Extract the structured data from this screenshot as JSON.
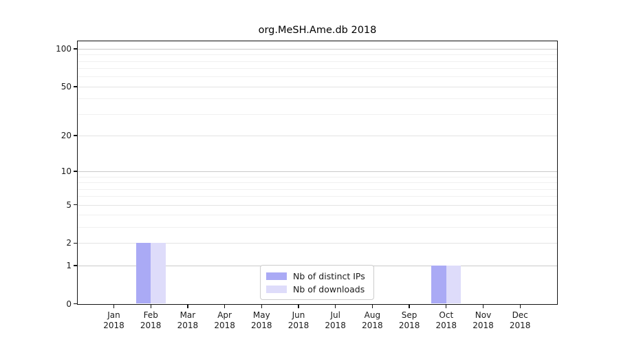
{
  "chart_data": {
    "type": "bar",
    "title": "org.MeSH.Ame.db 2018",
    "year": "2018",
    "categories": [
      "Jan 2018",
      "Feb 2018",
      "Mar 2018",
      "Apr 2018",
      "May 2018",
      "Jun 2018",
      "Jul 2018",
      "Aug 2018",
      "Sep 2018",
      "Oct 2018",
      "Nov 2018",
      "Dec 2018"
    ],
    "month_labels": [
      "Jan",
      "Feb",
      "Mar",
      "Apr",
      "May",
      "Jun",
      "Jul",
      "Aug",
      "Sep",
      "Oct",
      "Nov",
      "Dec"
    ],
    "series": [
      {
        "name": "Nb of distinct IPs",
        "color": "#aaaaf5",
        "values": [
          0,
          2,
          0,
          0,
          0,
          0,
          0,
          0,
          0,
          1,
          0,
          0
        ]
      },
      {
        "name": "Nb of downloads",
        "color": "#dedcfa",
        "values": [
          0,
          2,
          0,
          0,
          0,
          0,
          0,
          0,
          0,
          1,
          0,
          0
        ]
      }
    ],
    "xlabel": "",
    "ylabel": "",
    "yscale": "log1p",
    "ytick_values": [
      0,
      1,
      2,
      5,
      10,
      20,
      50,
      100
    ],
    "ytick_labels": [
      "0",
      "1",
      "2",
      "5",
      "10",
      "20",
      "50",
      "100"
    ],
    "minor_gridline_values": [
      3,
      4,
      6,
      7,
      8,
      9,
      30,
      40,
      60,
      70,
      80,
      90
    ],
    "emphasized_gridline_values": [
      1,
      10,
      100
    ],
    "ylim": [
      0,
      115
    ],
    "grid": true,
    "legend_position": "bottom-center"
  },
  "colors": {
    "grid_emphasized": "#c9c9c9",
    "grid_major": "#e3e3e3",
    "grid_minor": "#f0f0f0",
    "spine": "#111111",
    "text": "#1a1a1a",
    "background": "#ffffff"
  }
}
